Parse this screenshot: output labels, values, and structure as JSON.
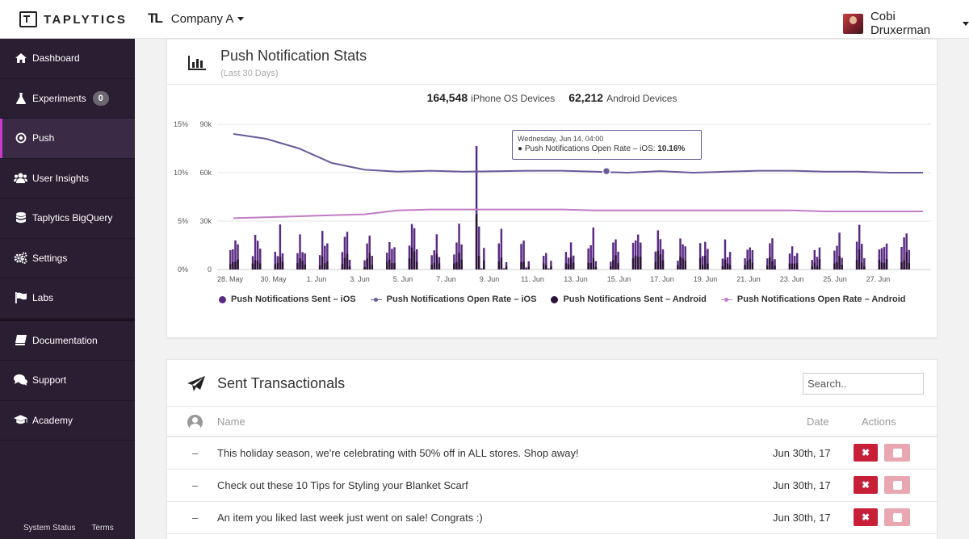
{
  "topbar": {
    "logo_text": "TAPLYTICS",
    "company_mark": "TL",
    "company_name": "Company A",
    "user_name": "Cobi Druxerman"
  },
  "sidebar": {
    "items": [
      {
        "label": "Dashboard",
        "icon": "dashboard-icon"
      },
      {
        "label": "Experiments",
        "icon": "flask-icon",
        "badge": "0"
      },
      {
        "label": "Push",
        "icon": "push-target-icon",
        "active": true
      },
      {
        "label": "User Insights",
        "icon": "users-icon"
      },
      {
        "label": "Taplytics BigQuery",
        "icon": "database-icon"
      },
      {
        "label": "Settings",
        "icon": "gears-icon"
      },
      {
        "label": "Labs",
        "icon": "flag-icon"
      },
      {
        "label": "Documentation",
        "icon": "book-icon"
      },
      {
        "label": "Support",
        "icon": "chat-icon"
      },
      {
        "label": "Academy",
        "icon": "graduation-cap-icon"
      }
    ],
    "footer": {
      "status": "System Status",
      "terms": "Terms"
    }
  },
  "stats": {
    "title": "Push Notification Stats",
    "subtitle": "(Last 30 Days)",
    "ios_count": "164,548",
    "ios_label": "iPhone OS Devices",
    "android_count": "62,212",
    "android_label": "Android Devices",
    "tooltip": {
      "date": "Wednesday, Jun 14, 04:00",
      "label": "Push Notifications Open Rate – iOS:",
      "value": "10.16%"
    }
  },
  "chart_data": {
    "type": "bar",
    "x_ticks": [
      "28. May",
      "30. May",
      "1. Jun",
      "3. Jun",
      "5. Jun",
      "7. Jun",
      "9. Jun",
      "11. Jun",
      "13. Jun",
      "15. Jun",
      "17. Jun",
      "19. Jun",
      "21. Jun",
      "23. Jun",
      "25. Jun",
      "27. Jun"
    ],
    "y_left_ticks": [
      "15%",
      "10%",
      "5%",
      "0%"
    ],
    "y_right_ticks": [
      "90k",
      "60k",
      "30k",
      "0"
    ],
    "ylim_sent": [
      0,
      90000
    ],
    "ylim_rate": [
      0,
      15
    ],
    "series": [
      {
        "name": "Push Notifications Sent – iOS",
        "color": "#5b2c83",
        "kind": "bar"
      },
      {
        "name": "Push Notifications Open Rate – iOS",
        "color": "#6a5a9a",
        "kind": "line",
        "values": [
          14.0,
          13.5,
          12.5,
          11.0,
          10.3,
          10.1,
          10.2,
          10.1,
          10.15,
          10.2,
          10.2,
          10.1,
          10.0,
          10.16,
          10.0,
          10.1,
          10.2,
          10.2,
          10.1,
          10.1,
          10.0,
          10.0
        ]
      },
      {
        "name": "Push Notifications Sent – Android",
        "color": "#2b1238",
        "kind": "bar"
      },
      {
        "name": "Push Notifications Open Rate – Android",
        "color": "#c17cc4",
        "kind": "line",
        "values": [
          5.3,
          5.4,
          5.5,
          5.6,
          5.7,
          6.1,
          6.2,
          6.2,
          6.2,
          6.2,
          6.2,
          6.1,
          6.1,
          6.1,
          6.1,
          6.1,
          6.1,
          6.1,
          6.0,
          6.0,
          6.0,
          6.0
        ]
      }
    ]
  },
  "transactionals": {
    "title": "Sent Transactionals",
    "search_placeholder": "Search..",
    "headers": {
      "name": "Name",
      "date": "Date",
      "actions": "Actions"
    },
    "rows": [
      {
        "dash": "–",
        "name": "This holiday season, we're celebrating with 50% off in ALL stores. Shop away!",
        "date": "Jun 30th, 17"
      },
      {
        "dash": "–",
        "name": "Check out these 10 Tips for Styling your Blanket Scarf",
        "date": "Jun 30th, 17"
      },
      {
        "dash": "–",
        "name": "An item you liked last week just went on sale! Congrats :)",
        "date": "Jun 30th, 17"
      }
    ],
    "delete_label": "✖"
  }
}
